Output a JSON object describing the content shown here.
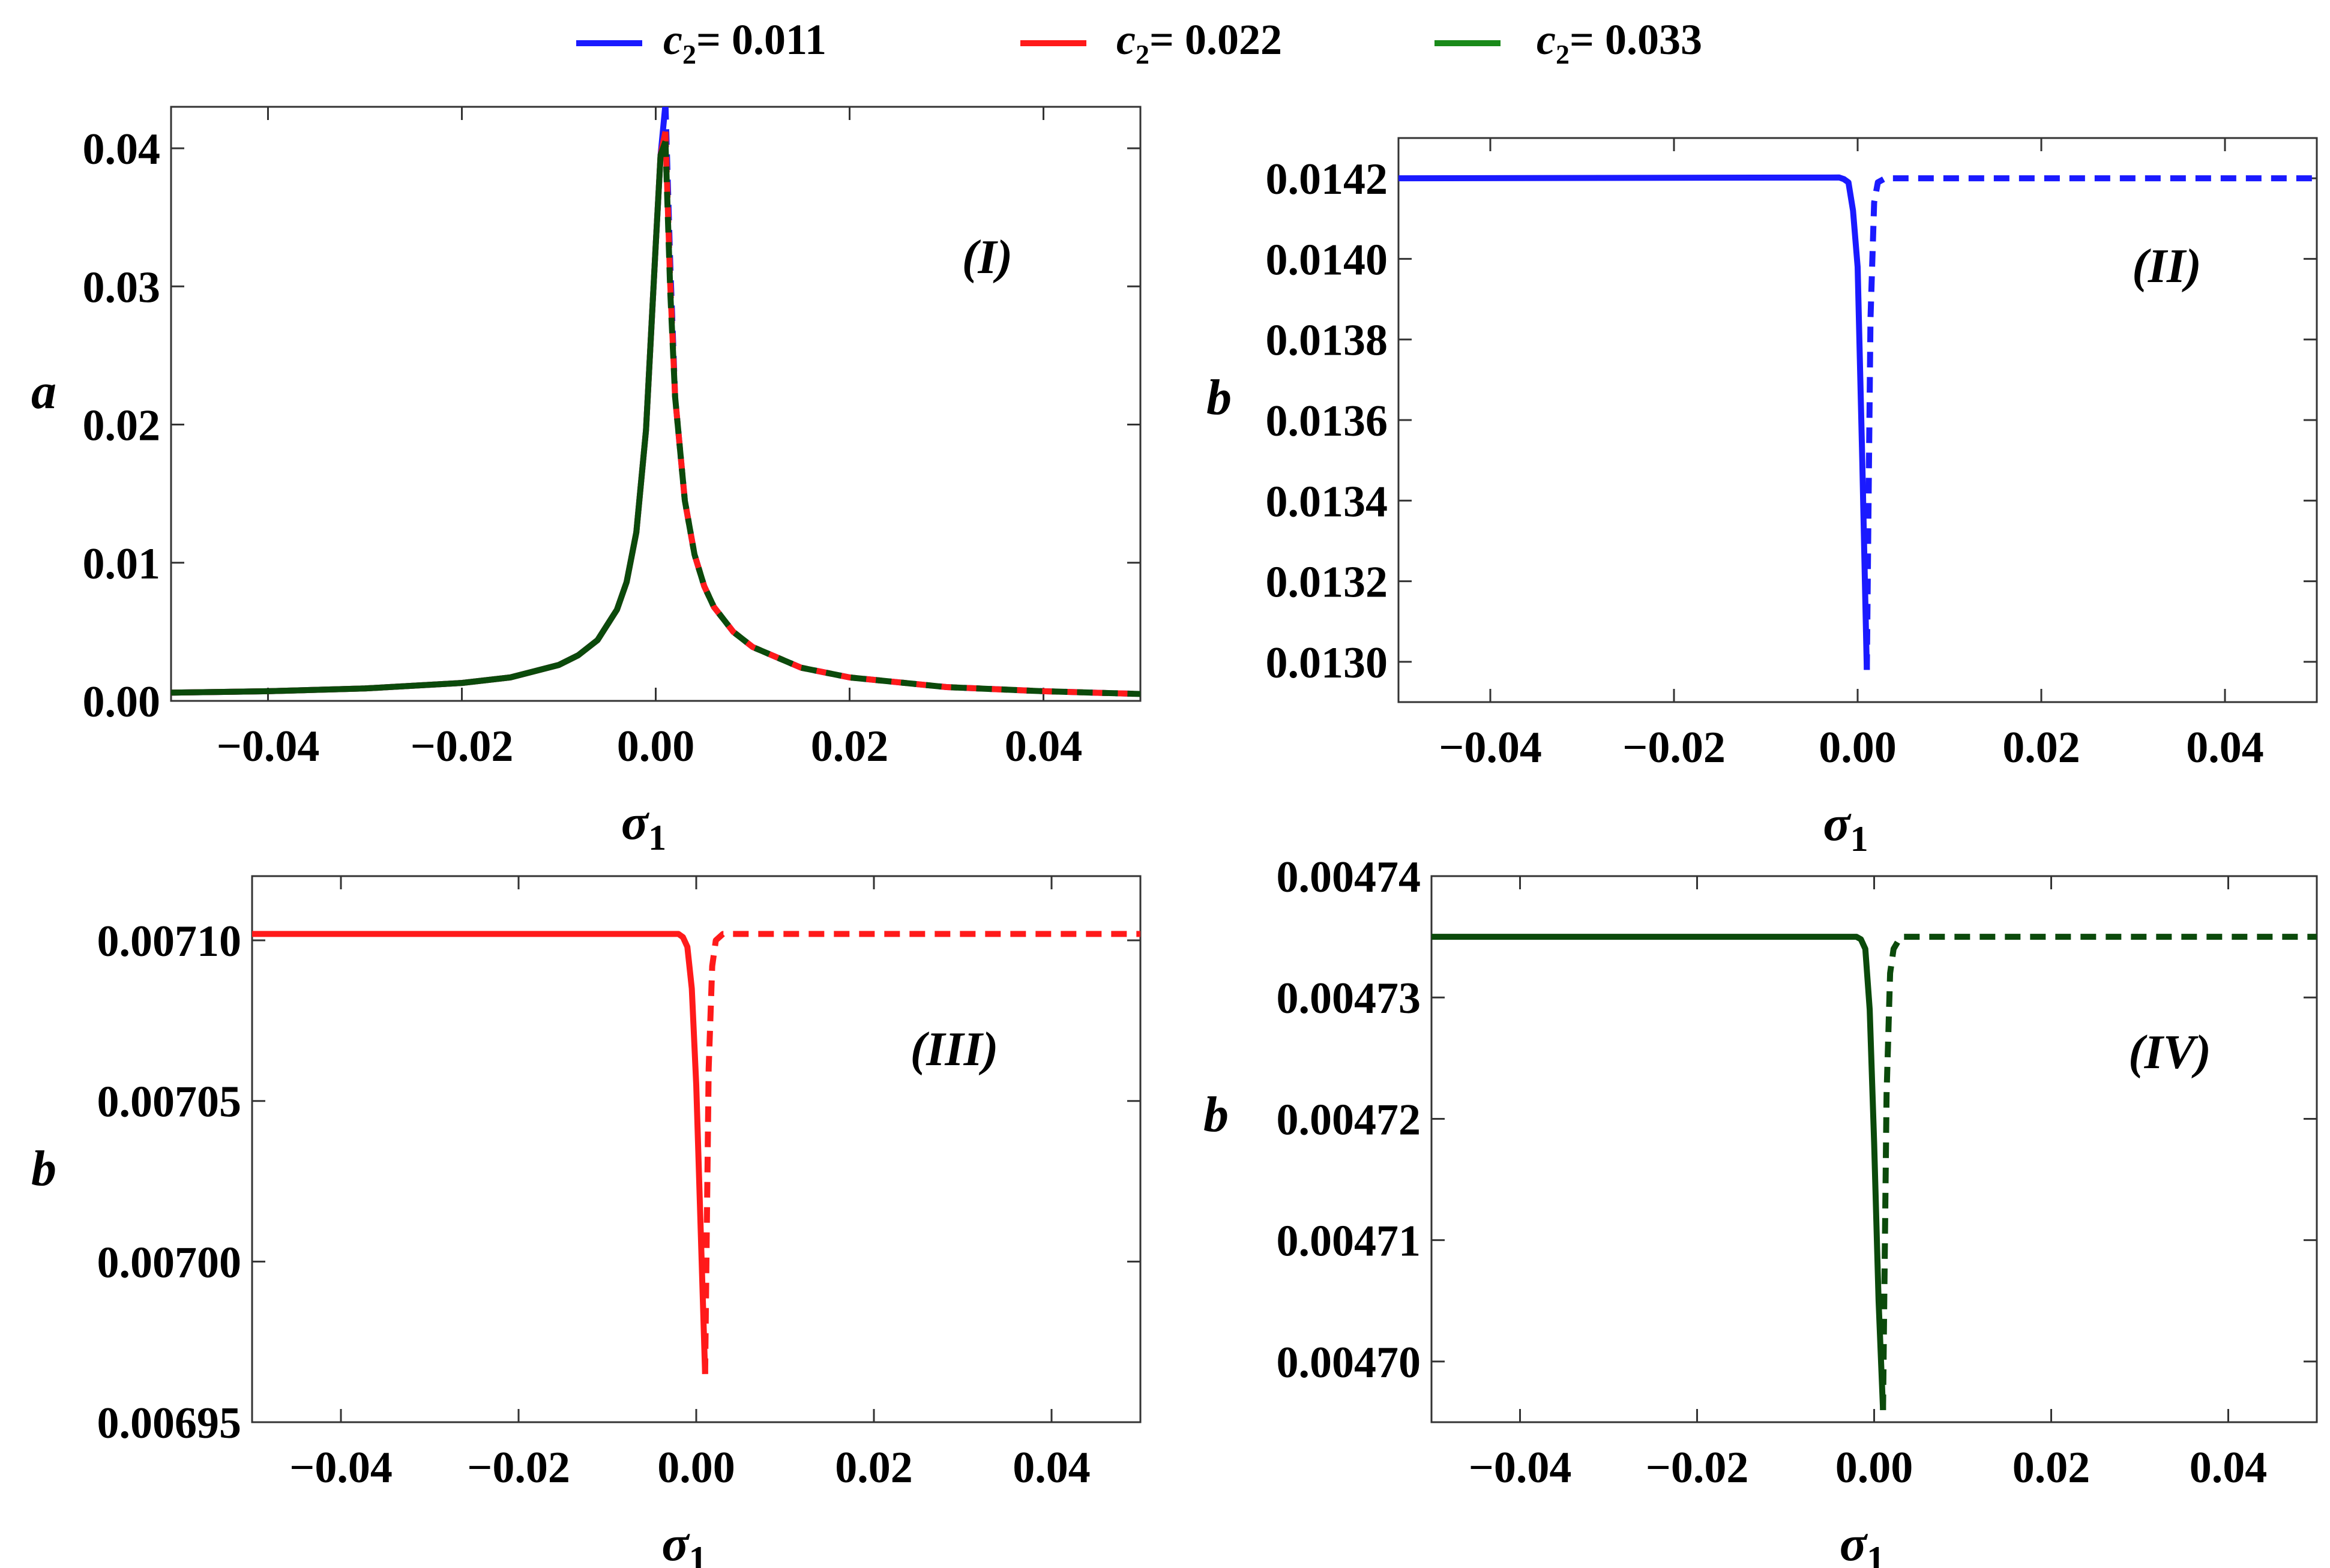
{
  "legend": {
    "items": [
      {
        "prefix": "c",
        "sub": "2",
        "text": "= 0.011",
        "color": "#1a1aff"
      },
      {
        "prefix": "c",
        "sub": "2",
        "text": "= 0.022",
        "color": "#ff1a1a"
      },
      {
        "prefix": "c",
        "sub": "2",
        "text": "= 0.033",
        "color": "#1a8a1a"
      }
    ]
  },
  "chart_data": [
    {
      "type": "line",
      "tag": "(I)",
      "xlabel": "σ",
      "xlabel_sub": "1",
      "ylabel": "a",
      "xlim": [
        -0.05,
        0.05
      ],
      "ylim": [
        0,
        0.043
      ],
      "xticks": [
        -0.04,
        -0.02,
        0.0,
        0.02,
        0.04
      ],
      "xtick_labels": [
        "−0.04",
        "−0.02",
        "0.00",
        "0.02",
        "0.04"
      ],
      "yticks": [
        0.0,
        0.01,
        0.02,
        0.03,
        0.04
      ],
      "ytick_labels": [
        "0.00",
        "0.01",
        "0.02",
        "0.03",
        "0.04"
      ],
      "series": [
        {
          "name": "c2 = 0.011",
          "color": "#1a1aff",
          "peak": 0.0432,
          "style": "solid-left-dashed-right"
        },
        {
          "name": "c2 = 0.022",
          "color": "#ff1a1a",
          "peak": 0.0412,
          "style": "solid-left-dashed-right"
        },
        {
          "name": "c2 = 0.033",
          "color": "#0b4a0b",
          "peak": 0.0405,
          "style": "solid-left-dashed-right"
        }
      ],
      "curve": {
        "x": [
          -0.05,
          -0.04,
          -0.03,
          -0.02,
          -0.015,
          -0.01,
          -0.008,
          -0.006,
          -0.004,
          -0.003,
          -0.002,
          -0.001,
          0.0,
          0.0005,
          0.001,
          0.0015,
          0.002,
          0.003,
          0.004,
          0.005,
          0.006,
          0.008,
          0.01,
          0.015,
          0.02,
          0.03,
          0.04,
          0.05
        ],
        "y": [
          0.0006,
          0.0007,
          0.0009,
          0.0013,
          0.0017,
          0.0026,
          0.0033,
          0.0044,
          0.0066,
          0.0086,
          0.0122,
          0.0196,
          0.033,
          0.0395,
          0.041,
          0.03,
          0.022,
          0.0145,
          0.0106,
          0.0083,
          0.0068,
          0.005,
          0.0039,
          0.0024,
          0.0017,
          0.001,
          0.0007,
          0.0005
        ]
      }
    },
    {
      "type": "line",
      "tag": "(II)",
      "xlabel": "σ",
      "xlabel_sub": "1",
      "ylabel": "b",
      "xlim": [
        -0.05,
        0.05
      ],
      "ylim": [
        0.0129,
        0.0143
      ],
      "xticks": [
        -0.04,
        -0.02,
        0.0,
        0.02,
        0.04
      ],
      "xtick_labels": [
        "−0.04",
        "−0.02",
        "0.00",
        "0.02",
        "0.04"
      ],
      "yticks": [
        0.013,
        0.0132,
        0.0134,
        0.0136,
        0.0138,
        0.014,
        0.0142
      ],
      "ytick_labels": [
        "0.0130",
        "0.0132",
        "0.0134",
        "0.0136",
        "0.0138",
        "0.0140",
        "0.0142"
      ],
      "color": "#1a1aff",
      "solid": {
        "x": [
          -0.05,
          -0.002,
          -0.0015,
          -0.001,
          -0.0005,
          0.0,
          0.0005,
          0.001
        ],
        "y": [
          0.0142,
          0.014202,
          0.014198,
          0.01419,
          0.01412,
          0.01398,
          0.0135,
          0.01298
        ]
      },
      "dashed": {
        "x": [
          0.001,
          0.0014,
          0.0018,
          0.0022,
          0.003,
          0.05
        ],
        "y": [
          0.01298,
          0.01385,
          0.01414,
          0.01419,
          0.0142,
          0.0142
        ]
      }
    },
    {
      "type": "line",
      "tag": "(III)",
      "xlabel": "σ",
      "xlabel_sub": "1",
      "ylabel": "b",
      "xlim": [
        -0.05,
        0.05
      ],
      "ylim": [
        0.00695,
        0.00712
      ],
      "xticks": [
        -0.04,
        -0.02,
        0.0,
        0.02,
        0.04
      ],
      "xtick_labels": [
        "−0.04",
        "−0.02",
        "0.00",
        "0.02",
        "0.04"
      ],
      "yticks": [
        0.00695,
        0.007,
        0.00705,
        0.0071
      ],
      "ytick_labels": [
        "0.00695",
        "0.00700",
        "0.00705",
        "0.00710"
      ],
      "color": "#ff1a1a",
      "solid": {
        "x": [
          -0.05,
          -0.002,
          -0.0015,
          -0.001,
          -0.0005,
          0.0,
          0.0005,
          0.001
        ],
        "y": [
          0.007102,
          0.007102,
          0.007101,
          0.007098,
          0.007085,
          0.007055,
          0.00701,
          0.006965
        ]
      },
      "dashed": {
        "x": [
          0.001,
          0.0014,
          0.0018,
          0.0022,
          0.003,
          0.05
        ],
        "y": [
          0.006965,
          0.00706,
          0.007092,
          0.0071,
          0.007102,
          0.007102
        ]
      }
    },
    {
      "type": "line",
      "tag": "(IV)",
      "xlabel": "σ",
      "xlabel_sub": "1",
      "ylabel": "b",
      "xlim": [
        -0.05,
        0.05
      ],
      "ylim": [
        0.004695,
        0.00474
      ],
      "xticks": [
        -0.04,
        -0.02,
        0.0,
        0.02,
        0.04
      ],
      "xtick_labels": [
        "−0.04",
        "−0.02",
        "0.00",
        "0.02",
        "0.04"
      ],
      "yticks": [
        0.0047,
        0.00471,
        0.00472,
        0.00473,
        0.00474
      ],
      "ytick_labels": [
        "0.00470",
        "0.00471",
        "0.00472",
        "0.00473",
        "0.00474"
      ],
      "color": "#0b4a0b",
      "solid": {
        "x": [
          -0.05,
          -0.002,
          -0.0015,
          -0.001,
          -0.0005,
          0.0,
          0.0005,
          0.001
        ],
        "y": [
          0.004735,
          0.004735,
          0.0047348,
          0.004734,
          0.004729,
          0.004718,
          0.004705,
          0.004696
        ]
      },
      "dashed": {
        "x": [
          0.001,
          0.0014,
          0.0018,
          0.0022,
          0.003,
          0.05
        ],
        "y": [
          0.004696,
          0.004722,
          0.004732,
          0.004734,
          0.004735,
          0.004735
        ]
      }
    }
  ]
}
